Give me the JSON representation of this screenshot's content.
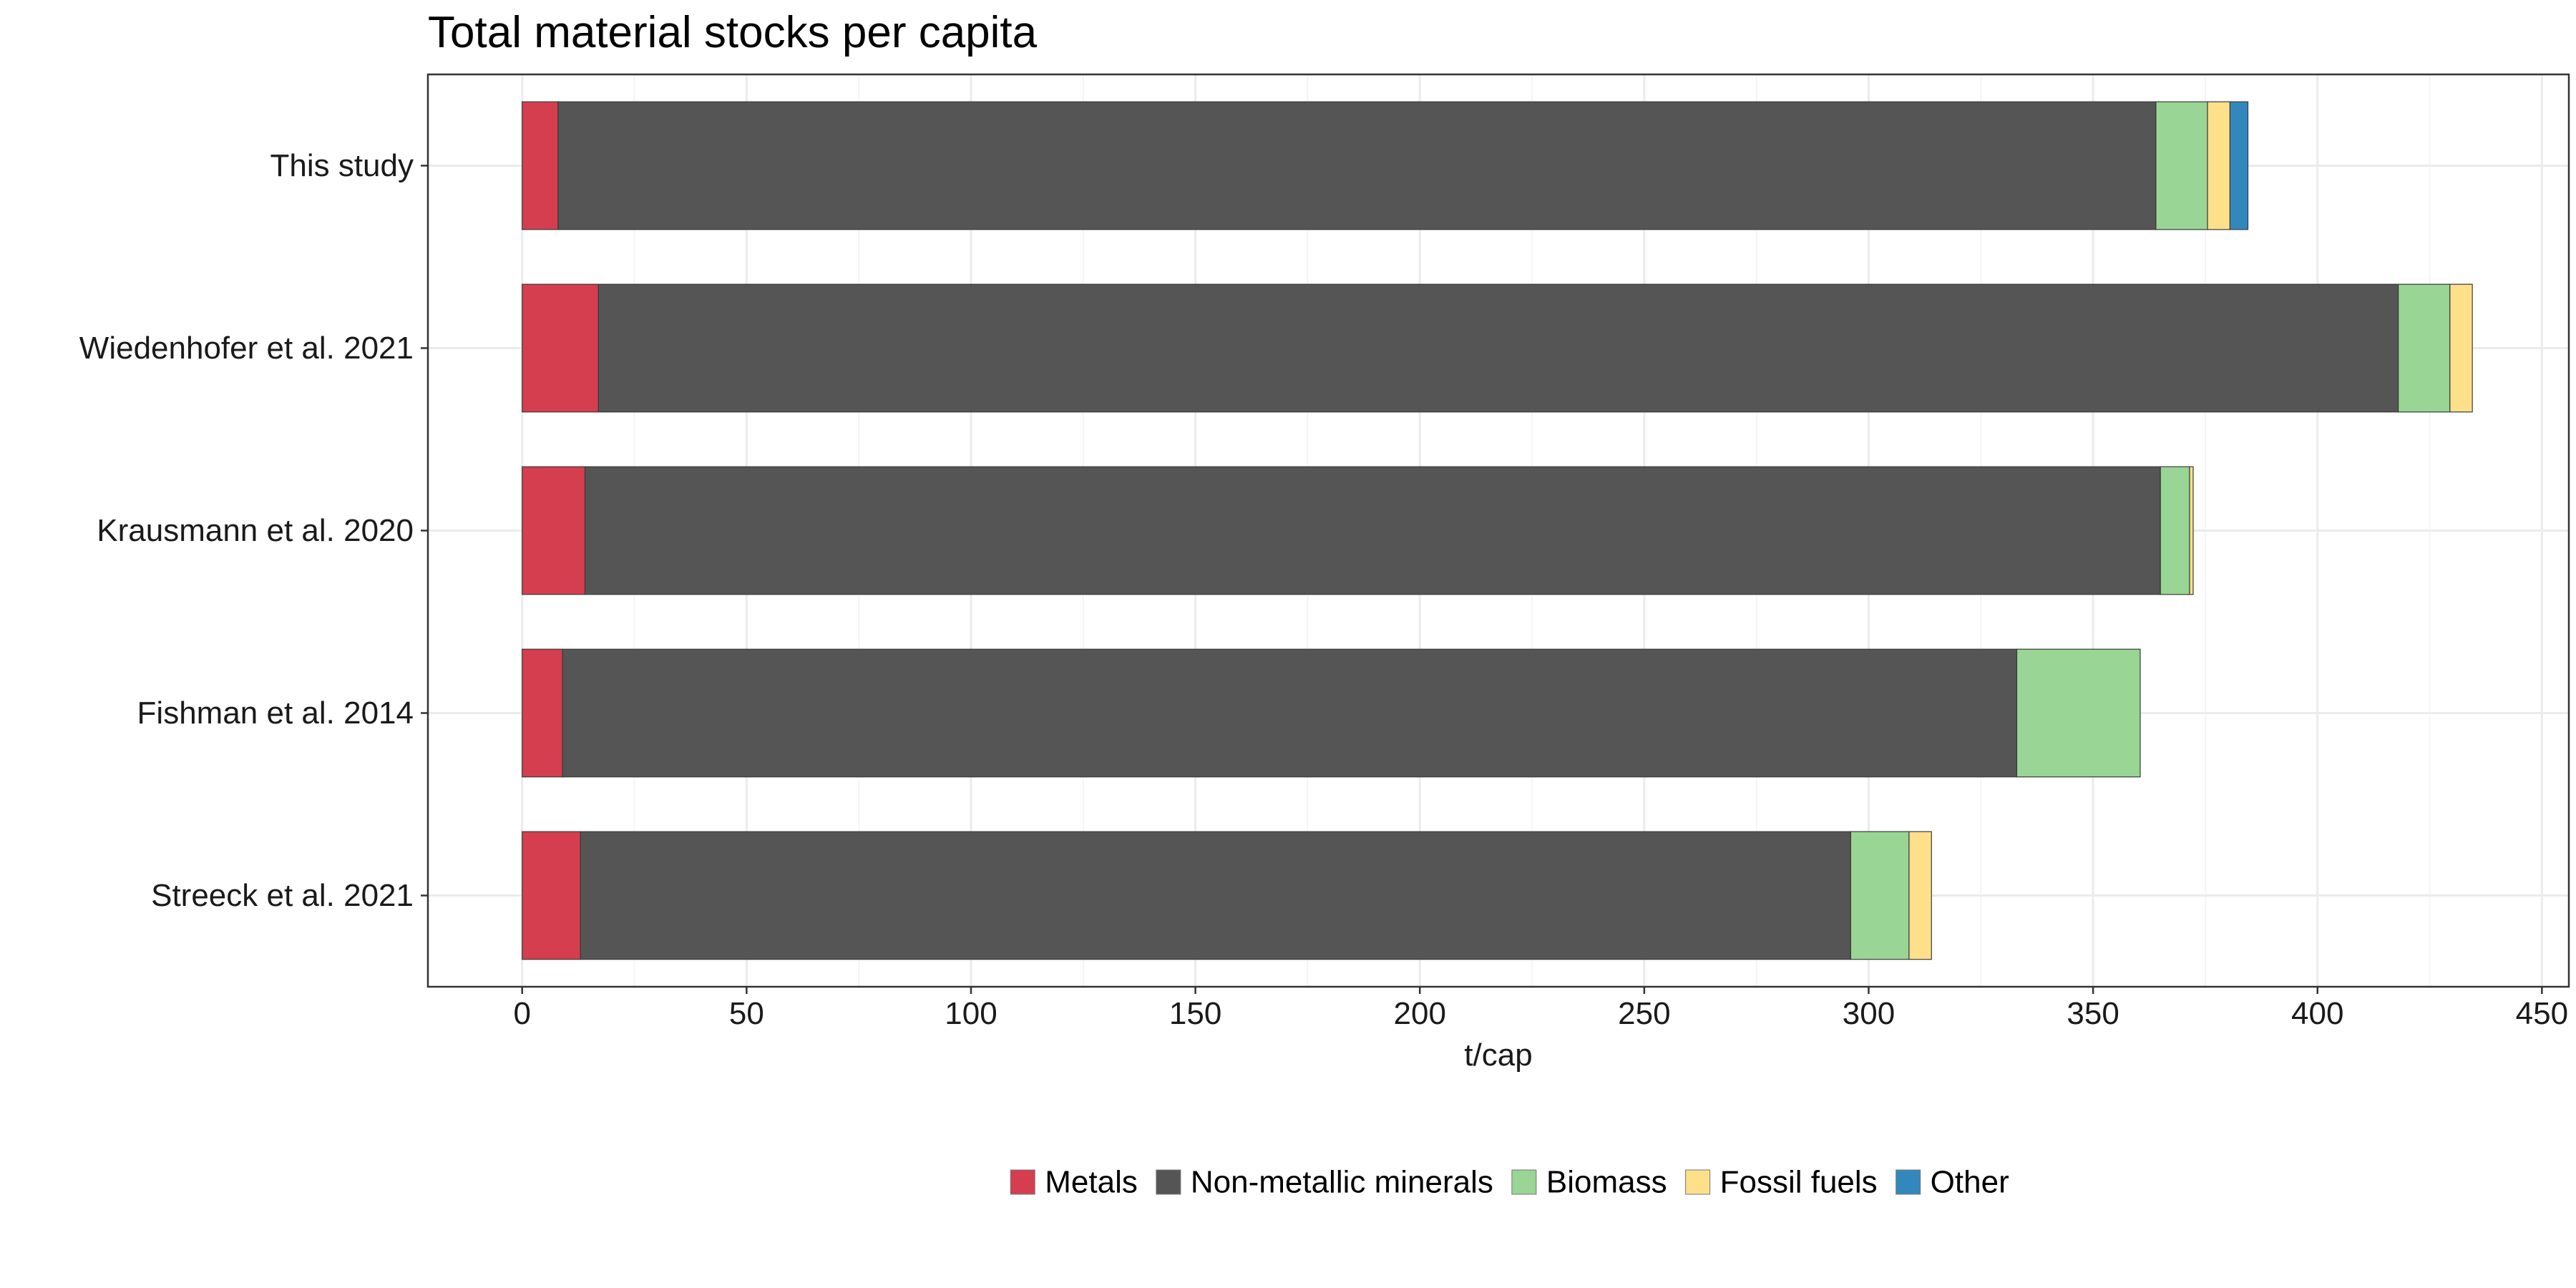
{
  "chart_data": {
    "type": "bar",
    "orientation": "horizontal",
    "stacked": true,
    "title": "Total material stocks per capita",
    "xlabel": "t/cap",
    "ylabel": "",
    "xlim": [
      -21,
      456
    ],
    "xticks": [
      0,
      50,
      100,
      150,
      200,
      250,
      300,
      350,
      400,
      450
    ],
    "grid": true,
    "legend_position": "bottom",
    "categories": [
      "This study",
      "Wiedenhofer et al. 2021",
      "Krausmann et al. 2020",
      "Fishman et al. 2014",
      "Streeck et al. 2021"
    ],
    "series": [
      {
        "name": "Metals",
        "color": "#d53e4f",
        "values": [
          8,
          17,
          14,
          9,
          13
        ]
      },
      {
        "name": "Non-metallic minerals",
        "color": "#555555",
        "values": [
          356,
          401,
          351,
          324,
          283
        ]
      },
      {
        "name": "Biomass",
        "color": "#99d594",
        "values": [
          11.5,
          11.5,
          6.5,
          27.5,
          13
        ]
      },
      {
        "name": "Fossil fuels",
        "color": "#fee08b",
        "values": [
          5,
          5,
          0.8,
          0,
          5
        ]
      },
      {
        "name": "Other",
        "color": "#3288bd",
        "values": [
          4,
          0,
          0,
          0,
          0
        ]
      }
    ]
  }
}
